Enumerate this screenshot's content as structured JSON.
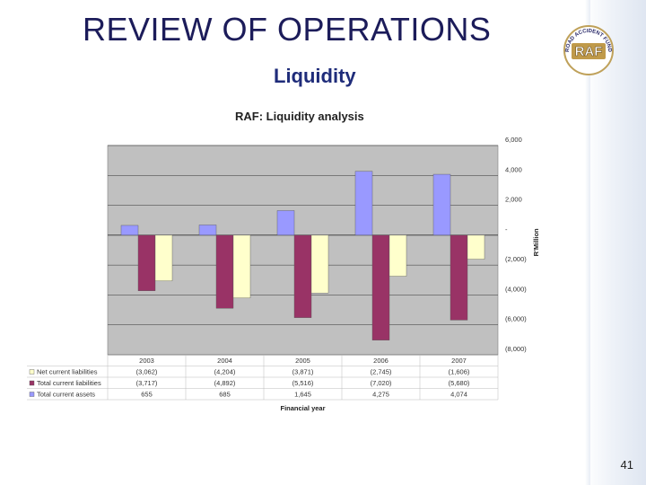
{
  "slide": {
    "title": "REVIEW OF OPERATIONS",
    "subtitle": "Liquidity",
    "page_number": "41"
  },
  "logo": {
    "text": "RAF",
    "ring_text": "ROAD ACCIDENT FUND"
  },
  "colors": {
    "title": "#1c1c5a",
    "subtitle": "#1f2c7a",
    "net_current_liabilities": "#ffffcc",
    "total_current_liabilities": "#993366",
    "total_current_assets": "#9999ff",
    "plot_bg": "#c0c0c0"
  },
  "chart_data": {
    "type": "bar",
    "title": "RAF: Liquidity analysis",
    "xlabel": "Financial year",
    "ylabel": "R'Million",
    "categories": [
      "2003",
      "2004",
      "2005",
      "2006",
      "2007"
    ],
    "ylim": [
      -8000,
      6000
    ],
    "yticks": [
      {
        "value": 6000,
        "label": "6,000"
      },
      {
        "value": 4000,
        "label": "4,000"
      },
      {
        "value": 2000,
        "label": "2,000"
      },
      {
        "value": 0,
        "label": "-"
      },
      {
        "value": -2000,
        "label": "(2,000)"
      },
      {
        "value": -4000,
        "label": "(4,000)"
      },
      {
        "value": -6000,
        "label": "(6,000)"
      },
      {
        "value": -8000,
        "label": "(8,000)"
      }
    ],
    "y_axis_side": "right",
    "grid": true,
    "series": [
      {
        "key": "assets",
        "name": "Total current assets",
        "values": [
          655,
          685,
          1645,
          4275,
          4074
        ],
        "labels": [
          "655",
          "685",
          "1,645",
          "4,275",
          "4,074"
        ]
      },
      {
        "key": "liabilities",
        "name": "Total current liabilities",
        "values": [
          -3717,
          -4892,
          -5516,
          -7020,
          -5680
        ],
        "labels": [
          "(3,717)",
          "(4,892)",
          "(5,516)",
          "(7,020)",
          "(5,680)"
        ]
      },
      {
        "key": "net",
        "name": "Net current liabilities",
        "values": [
          -3062,
          -4204,
          -3871,
          -2745,
          -1606
        ],
        "labels": [
          "(3,062)",
          "(4,204)",
          "(3,871)",
          "(2,745)",
          "(1,606)"
        ]
      }
    ],
    "table_row_order": [
      "net",
      "liabilities",
      "assets"
    ]
  }
}
